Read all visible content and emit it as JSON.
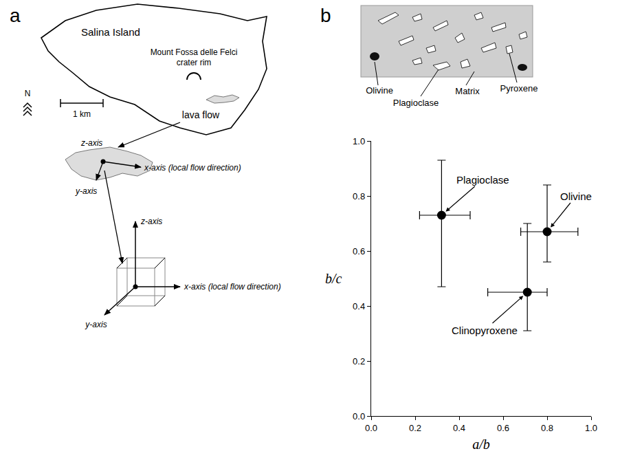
{
  "panels": {
    "a": {
      "letter": "a",
      "map": {
        "island": "Salina Island",
        "crater": [
          "Mount Fossa delle Felci",
          "crater rim"
        ],
        "north": "N",
        "scale": "1 km",
        "flow": "lava flow"
      },
      "flow_axes": {
        "z": "z-axis",
        "x": "x-axis (local flow direction)",
        "y": "y-axis"
      },
      "cube_axes": {
        "z": "z-axis",
        "x": "x-axis (local flow direction)",
        "y": "y-axis"
      }
    },
    "b": {
      "letter": "b",
      "thin_section": {
        "olivine": "Olivine",
        "plagioclase": "Plagioclase",
        "matrix": "Matrix",
        "pyroxene": "Pyroxene"
      }
    }
  },
  "chart_data": {
    "type": "scatter",
    "x_label": "a/b",
    "y_label": "b/c",
    "annotations": [
      "Plagioclase",
      "Olivine",
      "Clinopyroxene"
    ],
    "x": [
      0.32,
      0.8,
      0.71
    ],
    "values": [
      0.73,
      0.67,
      0.45
    ],
    "x_error_minus": [
      0.1,
      0.12,
      0.18
    ],
    "x_error_plus": [
      0.13,
      0.14,
      0.09
    ],
    "y_error_minus": [
      0.26,
      0.11,
      0.14
    ],
    "y_error_plus": [
      0.2,
      0.17,
      0.25
    ],
    "color": "#000000",
    "marker": "circle",
    "xlim": [
      0,
      1
    ],
    "ylim": [
      0,
      1
    ],
    "xticks": [
      {
        "value": 0,
        "label": "0.0"
      },
      {
        "value": 0.2,
        "label": "0.2"
      },
      {
        "value": 0.4,
        "label": "0.4"
      },
      {
        "value": 0.6,
        "label": "0.6"
      },
      {
        "value": 0.8,
        "label": "0.8"
      },
      {
        "value": 1,
        "label": "1.0"
      }
    ],
    "yticks": [
      {
        "value": 0,
        "label": "0.0"
      },
      {
        "value": 0.2,
        "label": "0.2"
      },
      {
        "value": 0.4,
        "label": "0.4"
      },
      {
        "value": 0.6,
        "label": "0.6"
      },
      {
        "value": 0.8,
        "label": "0.8"
      },
      {
        "value": 1,
        "label": "1.0"
      }
    ],
    "grid": false
  }
}
